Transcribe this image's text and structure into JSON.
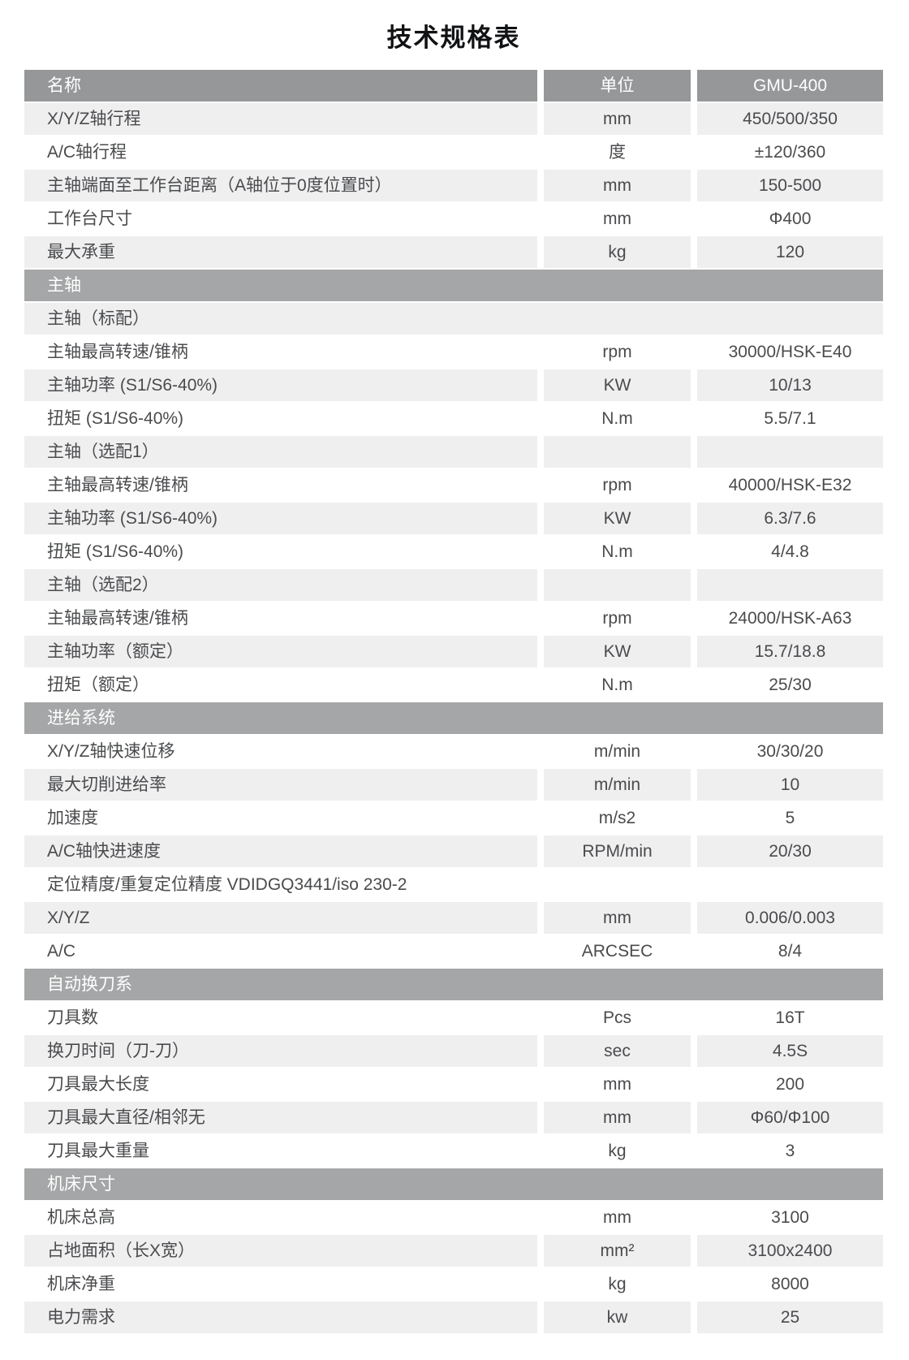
{
  "title": "技术规格表",
  "columns": {
    "name": "名称",
    "unit": "单位",
    "model": "GMU-400"
  },
  "colors": {
    "table_header_bg": "#969799",
    "section_header_bg": "#a5a6a7",
    "alt_row_bg": "#efeff0",
    "row_bg": "#ffffff",
    "header_text": "#ffffff",
    "body_text": "#4a4b4d"
  },
  "rows": [
    {
      "name": "X/Y/Z轴行程",
      "unit": "mm",
      "value": "450/500/350"
    },
    {
      "name": "A/C轴行程",
      "unit": "度",
      "value": "±120/360"
    },
    {
      "name": "主轴端面至工作台距离（A轴位于0度位置时）",
      "unit": "mm",
      "value": "150-500"
    },
    {
      "name": "工作台尺寸",
      "unit": "mm",
      "value": "Φ400"
    },
    {
      "name": "最大承重",
      "unit": "kg",
      "value": "120"
    },
    {
      "section": "主轴"
    },
    {
      "merged": "主轴（标配）"
    },
    {
      "name": "主轴最高转速/锥柄",
      "unit": "rpm",
      "value": "30000/HSK-E40"
    },
    {
      "name": "主轴功率 (S1/S6-40%)",
      "unit": "KW",
      "value": "10/13"
    },
    {
      "name": "扭矩 (S1/S6-40%)",
      "unit": "N.m",
      "value": "5.5/7.1"
    },
    {
      "name": "主轴（选配1）",
      "unit": "",
      "value": ""
    },
    {
      "name": "主轴最高转速/锥柄",
      "unit": "rpm",
      "value": "40000/HSK-E32"
    },
    {
      "name": "主轴功率 (S1/S6-40%)",
      "unit": "KW",
      "value": "6.3/7.6"
    },
    {
      "name": "扭矩 (S1/S6-40%)",
      "unit": "N.m",
      "value": "4/4.8"
    },
    {
      "name": "主轴（选配2）",
      "unit": "",
      "value": ""
    },
    {
      "name": "主轴最高转速/锥柄",
      "unit": "rpm",
      "value": "24000/HSK-A63"
    },
    {
      "name": "主轴功率（额定）",
      "unit": "KW",
      "value": "15.7/18.8"
    },
    {
      "name": "扭矩（额定）",
      "unit": "N.m",
      "value": "25/30"
    },
    {
      "section": "进给系统"
    },
    {
      "name": "X/Y/Z轴快速位移",
      "unit": "m/min",
      "value": "30/30/20"
    },
    {
      "name": "最大切削进给率",
      "unit": "m/min",
      "value": "10"
    },
    {
      "name": "加速度",
      "unit": "m/s2",
      "value": "5"
    },
    {
      "name": "A/C轴快进速度",
      "unit": "RPM/min",
      "value": "20/30"
    },
    {
      "merged": "定位精度/重复定位精度  VDIDGQ3441/iso 230-2"
    },
    {
      "name": "X/Y/Z",
      "unit": "mm",
      "value": "0.006/0.003"
    },
    {
      "name": "A/C",
      "unit": "ARCSEC",
      "value": "8/4"
    },
    {
      "section": "自动换刀系"
    },
    {
      "name": "刀具数",
      "unit": "Pcs",
      "value": "16T"
    },
    {
      "name": "换刀时间（刀-刀）",
      "unit": "sec",
      "value": "4.5S"
    },
    {
      "name": "刀具最大长度",
      "unit": "mm",
      "value": "200"
    },
    {
      "name": "刀具最大直径/相邻无",
      "unit": "mm",
      "value": "Φ60/Φ100"
    },
    {
      "name": "刀具最大重量",
      "unit": "kg",
      "value": "3"
    },
    {
      "section": "机床尺寸"
    },
    {
      "name": "机床总高",
      "unit": "mm",
      "value": "3100"
    },
    {
      "name": "占地面积（长X宽）",
      "unit": "mm²",
      "value": "3100x2400"
    },
    {
      "name": "机床净重",
      "unit": "kg",
      "value": "8000"
    },
    {
      "name": "电力需求",
      "unit": "kw",
      "value": "25"
    }
  ]
}
